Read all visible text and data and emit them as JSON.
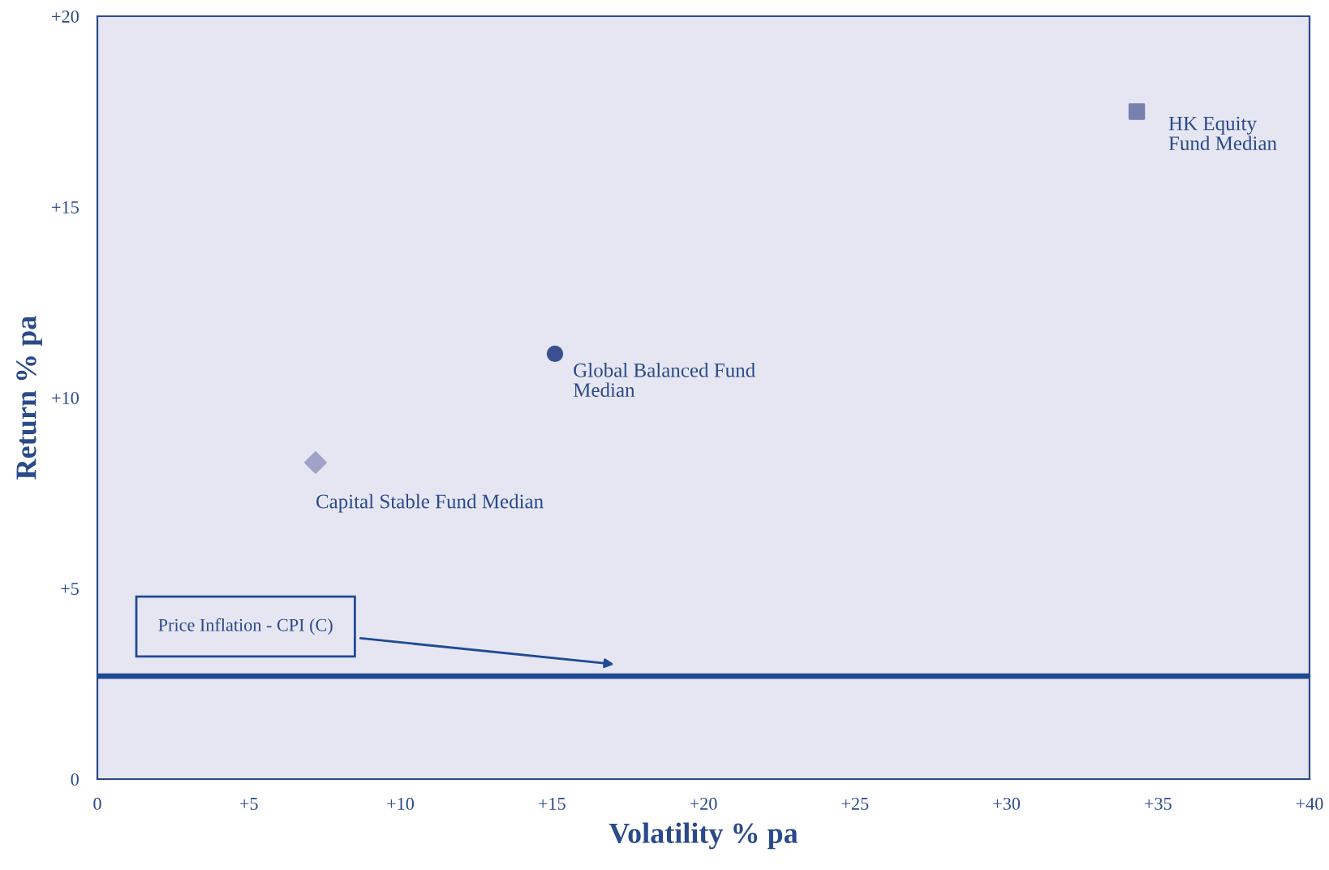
{
  "chart_data": {
    "type": "scatter",
    "xlabel": "Volatility % pa",
    "ylabel": "Return % pa",
    "xlim": [
      0,
      40
    ],
    "ylim": [
      0,
      20
    ],
    "xticks": [
      0,
      {
        "value": 5,
        "label": "+5"
      },
      {
        "value": 10,
        "label": "+10"
      },
      {
        "value": 15,
        "label": "+15"
      },
      {
        "value": 20,
        "label": "+20"
      },
      {
        "value": 25,
        "label": "+25"
      },
      {
        "value": 30,
        "label": "+30"
      },
      {
        "value": 35,
        "label": "+35"
      },
      {
        "value": 40,
        "label": "+40"
      }
    ],
    "yticks": [
      0,
      {
        "value": 5,
        "label": "+5"
      },
      {
        "value": 10,
        "label": "+10"
      },
      {
        "value": 15,
        "label": "+15"
      },
      {
        "value": 20,
        "label": "+20"
      }
    ],
    "grid": false,
    "legend": false,
    "series": [
      {
        "name": "Capital Stable Fund Median",
        "x": [
          7.2
        ],
        "values": [
          8.3
        ],
        "marker": "diamond",
        "color": "#a0a2c8"
      },
      {
        "name": "Global Balanced Fund\nMedian",
        "x": [
          15.1
        ],
        "values": [
          11.15
        ],
        "marker": "circle",
        "color": "#3a5090"
      },
      {
        "name": "HK Equity\nFund Median",
        "x": [
          34.3
        ],
        "values": [
          17.5
        ],
        "marker": "square",
        "color": "#7880b0"
      }
    ],
    "ref_lines": [
      {
        "axis": "y",
        "value": 2.7,
        "label": "Price Inflation - CPI (C)",
        "color": "#1f4a94"
      }
    ]
  }
}
